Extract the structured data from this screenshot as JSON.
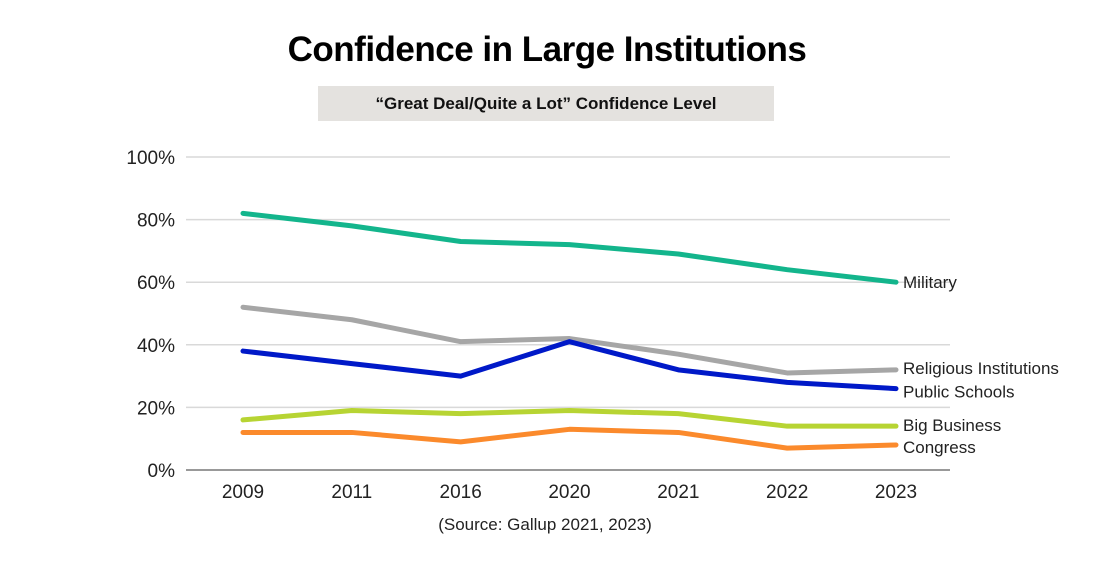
{
  "chart_data": {
    "type": "line",
    "title": "Confidence in Large Institutions",
    "subtitle": "“Great Deal/Quite a Lot” Confidence Level",
    "source": "(Source: Gallup 2021, 2023)",
    "xlabel": "",
    "ylabel": "",
    "categories": [
      "2009",
      "2011",
      "2016",
      "2020",
      "2021",
      "2022",
      "2023"
    ],
    "ylim": [
      0,
      100
    ],
    "yticks": [
      0,
      20,
      40,
      60,
      80,
      100
    ],
    "ytick_labels": [
      "0%",
      "20%",
      "40%",
      "60%",
      "80%",
      "100%"
    ],
    "grid": true,
    "legend": "inline labels at right end of lines",
    "series": [
      {
        "name": "Military",
        "color": "#13b58c",
        "values": [
          82,
          78,
          73,
          72,
          69,
          64,
          60
        ]
      },
      {
        "name": "Religious Institutions",
        "color": "#a6a6a6",
        "values": [
          52,
          48,
          41,
          42,
          37,
          31,
          32
        ]
      },
      {
        "name": "Public Schools",
        "color": "#0019c8",
        "values": [
          38,
          34,
          30,
          41,
          32,
          28,
          26
        ]
      },
      {
        "name": "Big Business",
        "color": "#b7d433",
        "values": [
          16,
          19,
          18,
          19,
          18,
          14,
          14
        ]
      },
      {
        "name": "Congress",
        "color": "#fb8a2c",
        "values": [
          12,
          12,
          9,
          13,
          12,
          7,
          8
        ]
      }
    ]
  }
}
